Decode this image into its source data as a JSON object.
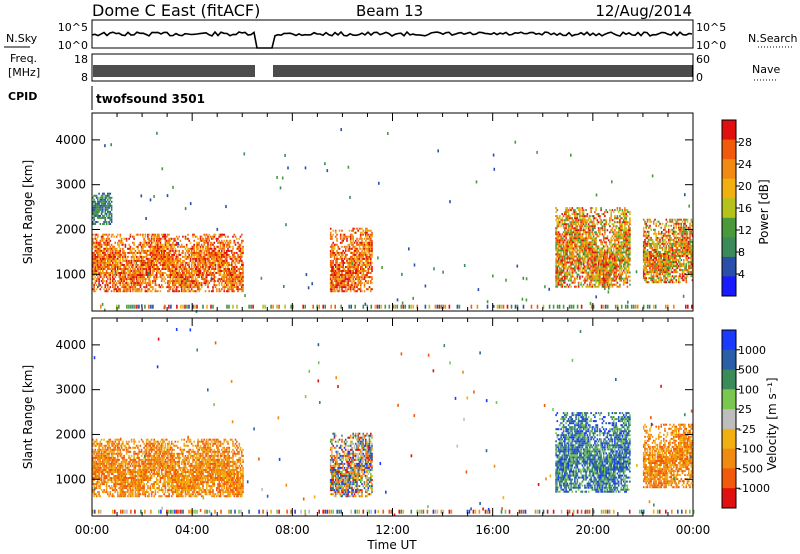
{
  "header": {
    "station": "Dome C East (fitACF)",
    "beam": "Beam 13",
    "date": "12/Aug/2014"
  },
  "top_panels": {
    "nsky_label": "N.Sky",
    "nsky_ticks": [
      "10^5",
      "10^0"
    ],
    "nsearch_label": "N.Search",
    "nsearch_ticks": [
      "10^5",
      "10^0"
    ],
    "freq_label_1": "Freq.",
    "freq_label_2": "[MHz]",
    "freq_ticks": [
      "18",
      "8"
    ],
    "nave_label": "Nave",
    "nave_ticks": [
      "60",
      "0"
    ],
    "cpid_label": "CPID",
    "cpid_value": "twofsound 3501"
  },
  "colors": {
    "power_scale": [
      "#1a1aff",
      "#2a4fa8",
      "#3b8a5a",
      "#4a9a3c",
      "#b5c21a",
      "#f0b010",
      "#f08a10",
      "#f05a0a",
      "#e01010"
    ],
    "velocity_scale": [
      "#e01010",
      "#f05a0a",
      "#f08a10",
      "#f0b010",
      "#bdbdbd",
      "#7ac74f",
      "#3b8a5a",
      "#2a5fa8",
      "#1a3aff"
    ]
  },
  "chart_data": [
    {
      "type": "heatmap",
      "title": "Power",
      "xlabel": "Time UT",
      "ylabel": "Slant Range [km]",
      "x_ticks": [
        "00:00",
        "04:00",
        "08:00",
        "12:00",
        "16:00",
        "20:00",
        "00:00"
      ],
      "xlim_hours": [
        0,
        24
      ],
      "y_ticks": [
        1000,
        2000,
        3000,
        4000
      ],
      "ylim": [
        180,
        4600
      ],
      "colorbar_label": "Power [dB]",
      "colorbar_ticks": [
        "28",
        "24",
        "20",
        "16",
        "12",
        "8",
        "4"
      ],
      "echo_regions": [
        {
          "t_start": 0.0,
          "t_end": 6.0,
          "r_low": 600,
          "r_high": 1900,
          "level": "strong"
        },
        {
          "t_start": 0.0,
          "t_end": 0.8,
          "r_low": 2100,
          "r_high": 2800,
          "level": "weak"
        },
        {
          "t_start": 9.5,
          "t_end": 11.2,
          "r_low": 600,
          "r_high": 2000,
          "level": "strong"
        },
        {
          "t_start": 18.5,
          "t_end": 21.5,
          "r_low": 700,
          "r_high": 2500,
          "level": "moderate"
        },
        {
          "t_start": 22.0,
          "t_end": 24.0,
          "r_low": 800,
          "r_high": 2200,
          "level": "moderate"
        }
      ]
    },
    {
      "type": "heatmap",
      "title": "Velocity",
      "xlabel": "Time UT",
      "ylabel": "Slant Range [km]",
      "x_ticks": [
        "00:00",
        "04:00",
        "08:00",
        "12:00",
        "16:00",
        "20:00",
        "00:00"
      ],
      "xlim_hours": [
        0,
        24
      ],
      "y_ticks": [
        1000,
        2000,
        3000,
        4000
      ],
      "ylim": [
        180,
        4600
      ],
      "colorbar_label": "Velocity [m s⁻¹]",
      "colorbar_ticks": [
        "1000",
        "500",
        "100",
        "25",
        "-25",
        "-100",
        "-500",
        "-1000"
      ],
      "echo_regions": [
        {
          "t_start": 0.0,
          "t_end": 6.0,
          "r_low": 600,
          "r_high": 1900,
          "level": "negative"
        },
        {
          "t_start": 9.5,
          "t_end": 11.2,
          "r_low": 600,
          "r_high": 2000,
          "level": "mixed"
        },
        {
          "t_start": 18.5,
          "t_end": 21.5,
          "r_low": 700,
          "r_high": 2500,
          "level": "positive"
        },
        {
          "t_start": 22.0,
          "t_end": 24.0,
          "r_low": 800,
          "r_high": 2200,
          "level": "negative"
        }
      ]
    }
  ]
}
